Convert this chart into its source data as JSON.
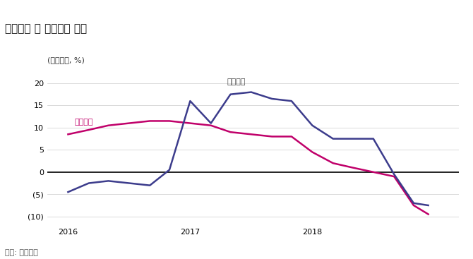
{
  "title": "건설투자 및 설비투자 추이",
  "ylabel": "(전년대비, %)",
  "source": "자료: 한국은행",
  "ylim": [
    -12,
    23
  ],
  "yticks": [
    -10,
    -5,
    0,
    5,
    10,
    15,
    20
  ],
  "ytick_labels": [
    "(10)",
    "(5)",
    "0",
    "5",
    "10",
    "15",
    "20"
  ],
  "construction_label": "건설투자",
  "equipment_label": "설비투자",
  "construction_color": "#c0006a",
  "equipment_color": "#3c3c8c",
  "construction_x": [
    2016.0,
    2016.17,
    2016.33,
    2016.5,
    2016.67,
    2016.83,
    2017.0,
    2017.17,
    2017.33,
    2017.5,
    2017.67,
    2017.83,
    2018.0,
    2018.17,
    2018.33,
    2018.5,
    2018.67,
    2018.83,
    2018.95
  ],
  "construction_y": [
    8.5,
    9.5,
    10.5,
    11.0,
    11.5,
    11.5,
    11.0,
    10.5,
    9.0,
    8.5,
    8.0,
    8.0,
    4.5,
    2.0,
    1.0,
    0.0,
    -1.0,
    -7.5,
    -9.5
  ],
  "equipment_x": [
    2016.0,
    2016.17,
    2016.33,
    2016.5,
    2016.67,
    2016.83,
    2017.0,
    2017.17,
    2017.33,
    2017.5,
    2017.67,
    2017.83,
    2018.0,
    2018.17,
    2018.33,
    2018.5,
    2018.67,
    2018.83,
    2018.95
  ],
  "equipment_y": [
    -4.5,
    -2.5,
    -2.0,
    -2.5,
    -3.0,
    0.5,
    16.0,
    11.0,
    17.5,
    18.0,
    16.5,
    16.0,
    10.5,
    7.5,
    7.5,
    7.5,
    -0.5,
    -7.0,
    -7.5
  ],
  "background_color": "#ffffff",
  "top_bar_color": "#8b1a4a",
  "zero_line_color": "#000000",
  "title_fontsize": 11,
  "label_fontsize": 8,
  "tick_fontsize": 8,
  "source_fontsize": 8,
  "line_width": 1.8
}
